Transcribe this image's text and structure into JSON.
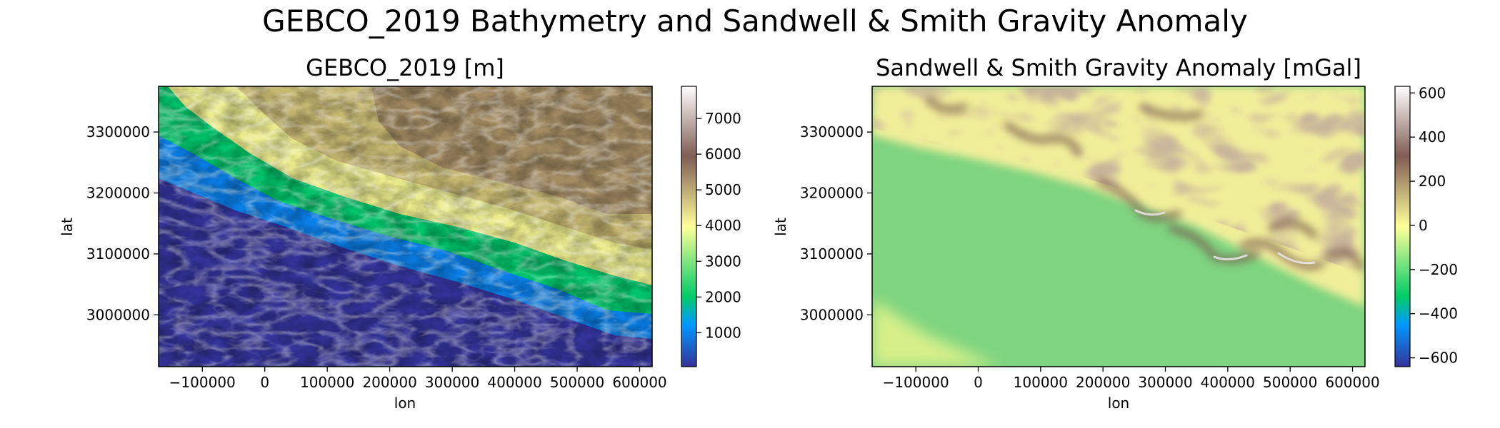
{
  "figure": {
    "title": "GEBCO_2019 Bathymetry and Sandwell & Smith Gravity Anomaly"
  },
  "chart_data": [
    {
      "type": "heatmap",
      "title": "GEBCO_2019 [m]",
      "xlabel": "lon",
      "ylabel": "lat",
      "xlim": [
        -170000,
        620000
      ],
      "ylim": [
        2915000,
        3375000
      ],
      "xticks": [
        -100000,
        0,
        100000,
        200000,
        300000,
        400000,
        500000,
        600000
      ],
      "xtick_labels": [
        "−100000",
        "0",
        "100000",
        "200000",
        "300000",
        "400000",
        "500000",
        "600000"
      ],
      "yticks": [
        3000000,
        3100000,
        3200000,
        3300000
      ],
      "ytick_labels": [
        "3000000",
        "3100000",
        "3200000",
        "3300000"
      ],
      "colorbar": {
        "colormap": "terrain",
        "vmin": 50,
        "vmax": 7900,
        "ticks": [
          1000,
          2000,
          3000,
          4000,
          5000,
          6000,
          7000
        ],
        "tick_labels": [
          "1000",
          "2000",
          "3000",
          "4000",
          "5000",
          "6000",
          "7000"
        ]
      }
    },
    {
      "type": "heatmap",
      "title": "Sandwell & Smith Gravity Anomaly [mGal]",
      "xlabel": "lon",
      "ylabel": "lat",
      "xlim": [
        -170000,
        620000
      ],
      "ylim": [
        2915000,
        3375000
      ],
      "xticks": [
        -100000,
        0,
        100000,
        200000,
        300000,
        400000,
        500000,
        600000
      ],
      "xtick_labels": [
        "−100000",
        "0",
        "100000",
        "200000",
        "300000",
        "400000",
        "500000",
        "600000"
      ],
      "yticks": [
        3000000,
        3100000,
        3200000,
        3300000
      ],
      "ytick_labels": [
        "3000000",
        "3100000",
        "3200000",
        "3300000"
      ],
      "colorbar": {
        "colormap": "terrain",
        "vmin": -640,
        "vmax": 630,
        "ticks": [
          -600,
          -400,
          -200,
          0,
          200,
          400,
          600
        ],
        "tick_labels": [
          "−600",
          "−400",
          "−200",
          "0",
          "200",
          "400",
          "600"
        ]
      }
    }
  ]
}
